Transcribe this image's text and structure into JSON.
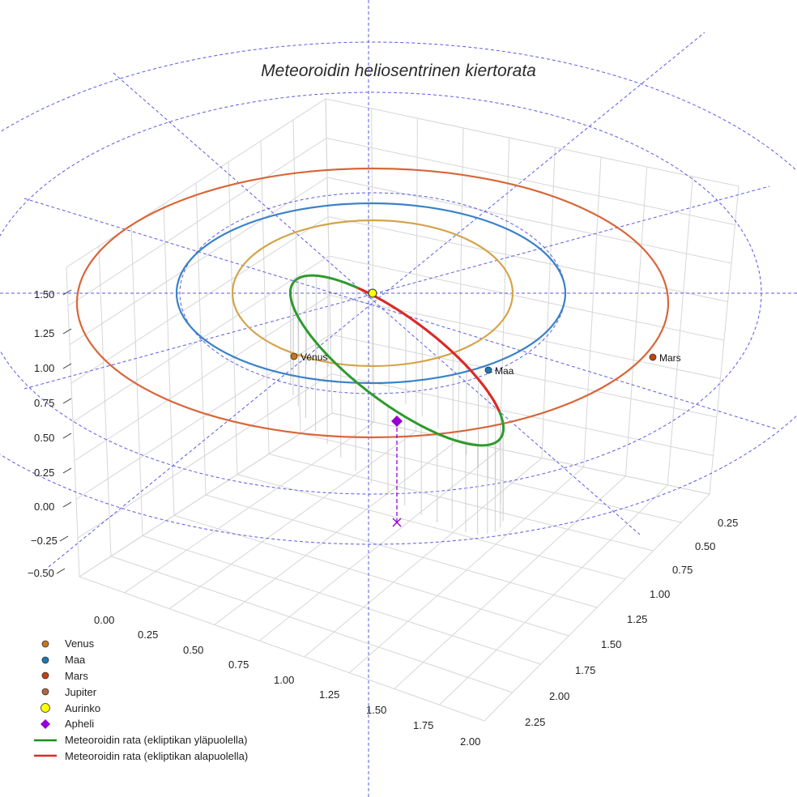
{
  "chart_data": {
    "type": "3d-line",
    "title": "Meteoroidin heliosentrinen kiertorata",
    "axes": {
      "x_ticks": [
        "0.00",
        "0.25",
        "0.50",
        "0.75",
        "1.00",
        "1.25",
        "1.50",
        "1.75",
        "2.00"
      ],
      "y_ticks": [
        "0.25",
        "0.50",
        "0.75",
        "1.00",
        "1.25",
        "1.50",
        "1.75",
        "2.00",
        "2.25"
      ],
      "z_ticks": [
        "1.50",
        "1.25",
        "1.00",
        "0.75",
        "0.50",
        "0.25",
        "0.00",
        "−0.25",
        "−0.50"
      ]
    },
    "planets": [
      {
        "name": "Venus",
        "orbit_radius_au": 0.72,
        "orbit_color": "#d4a44a",
        "marker_color": "#c8761e"
      },
      {
        "name": "Maa",
        "orbit_radius_au": 1.0,
        "orbit_color": "#3a82c8",
        "marker_color": "#1f77b4"
      },
      {
        "name": "Mars",
        "orbit_radius_au": 1.52,
        "orbit_color": "#d8663a",
        "marker_color": "#c1440e"
      }
    ],
    "series": [
      {
        "name": "Meteoroidin rata (ekliptikan yläpuolella)",
        "color": "#2e9a2e"
      },
      {
        "name": "Meteoroidin rata (ekliptikan alapuolella)",
        "color": "#e32626"
      }
    ],
    "legend": [
      {
        "label": "Venus",
        "kind": "dot",
        "color": "#c8761e"
      },
      {
        "label": "Maa",
        "kind": "dot",
        "color": "#1f77b4"
      },
      {
        "label": "Mars",
        "kind": "dot",
        "color": "#c1440e"
      },
      {
        "label": "Jupiter",
        "kind": "dot",
        "color": "#b5653a"
      },
      {
        "label": "Aurinko",
        "kind": "sun",
        "color": "#ffff00"
      },
      {
        "label": "Apheli",
        "kind": "diamond",
        "color": "#9400d3"
      },
      {
        "label": "Meteoroidin rata (ekliptikan yläpuolella)",
        "kind": "line",
        "color": "#1e8c1e"
      },
      {
        "label": "Meteoroidin rata (ekliptikan alapuolella)",
        "kind": "line",
        "color": "#e32626"
      }
    ]
  }
}
